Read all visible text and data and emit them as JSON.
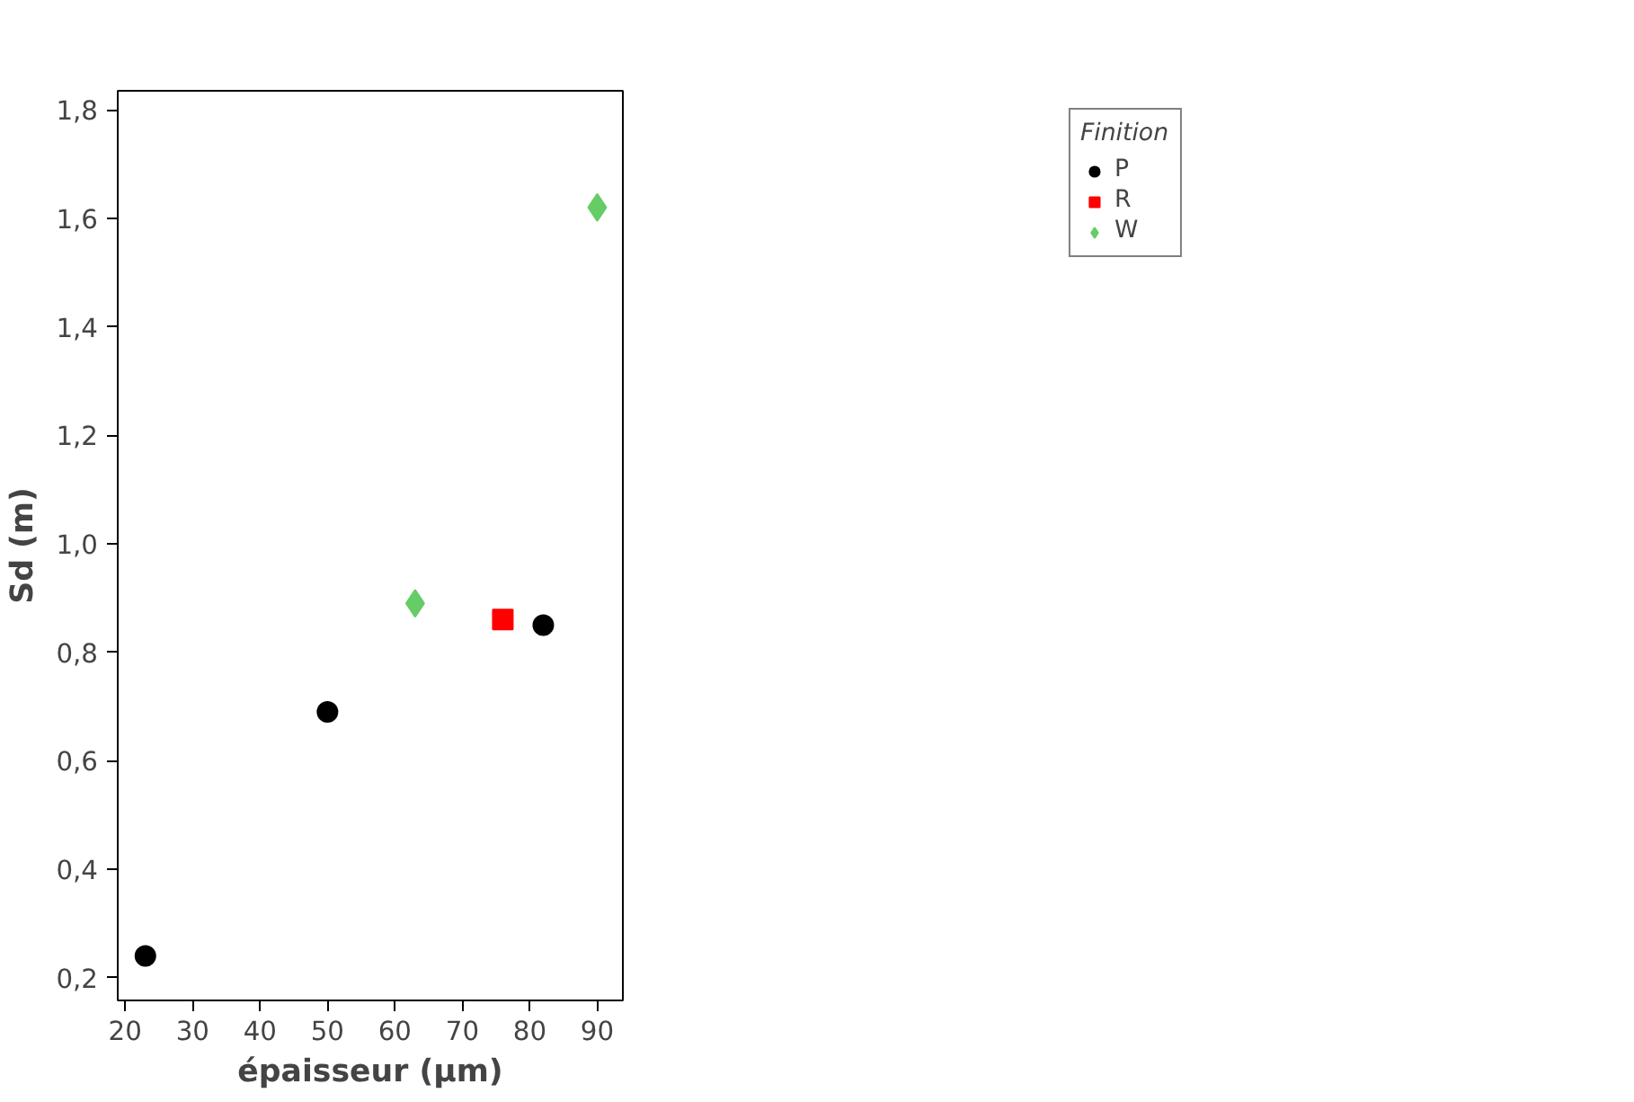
{
  "chart_data": {
    "type": "scatter",
    "xlabel": "épaisseur (µm)",
    "ylabel": "Sd (m)",
    "legend_title": "Finition",
    "legend": "right",
    "xlim": [
      18.9,
      93.8
    ],
    "ylim": [
      0.158,
      1.835
    ],
    "xticks": [
      20,
      30,
      40,
      50,
      60,
      70,
      80,
      90
    ],
    "yticks": [
      {
        "value": 0.2,
        "label": "0,2"
      },
      {
        "value": 0.4,
        "label": "0,4"
      },
      {
        "value": 0.6,
        "label": "0,6"
      },
      {
        "value": 0.8,
        "label": "0,8"
      },
      {
        "value": 1.0,
        "label": "1,0"
      },
      {
        "value": 1.2,
        "label": "1,2"
      },
      {
        "value": 1.4,
        "label": "1,4"
      },
      {
        "value": 1.6,
        "label": "1,6"
      },
      {
        "value": 1.8,
        "label": "1,8"
      }
    ],
    "grid": false,
    "series": [
      {
        "name": "P",
        "color": "#000000",
        "marker": "circle",
        "x": [
          23,
          50,
          82
        ],
        "values": [
          0.24,
          0.69,
          0.85
        ]
      },
      {
        "name": "R",
        "color": "#ff0000",
        "marker": "square",
        "x": [
          76
        ],
        "values": [
          0.86
        ]
      },
      {
        "name": "W",
        "color": "#66cc66",
        "marker": "diamond",
        "x": [
          63,
          90
        ],
        "values": [
          0.89,
          1.62
        ]
      }
    ]
  }
}
